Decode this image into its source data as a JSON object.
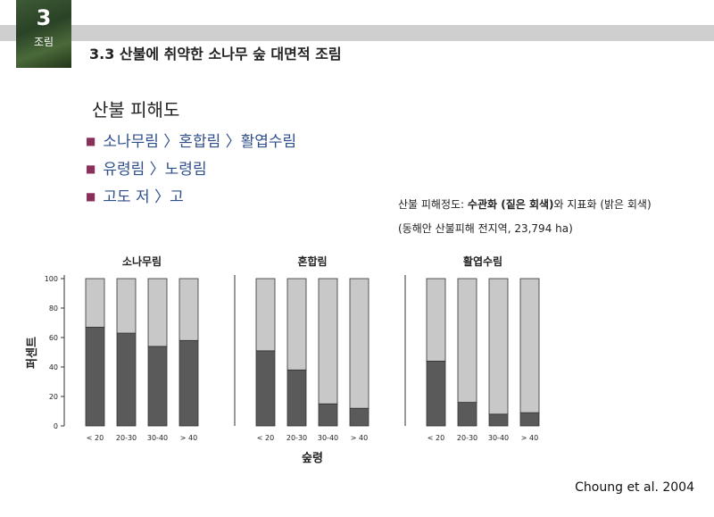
{
  "chapter": {
    "number": "3",
    "label": "조림"
  },
  "slide_title": "3.3 산불에 취약한 소나무 숲 대면적 조림",
  "section": {
    "heading": "산불 피해도",
    "bullets": [
      "소나무림 〉혼합림 〉활엽수림",
      "유령림 〉노령림",
      "고도 저 〉고"
    ]
  },
  "caption": {
    "line1_prefix": "산불 피해정도: ",
    "line1_bold": "수관화 (짙은 회색)",
    "line1_suffix": "와 지표화 (밝은 회색)",
    "line2": "(동해안 산불피해 전지역, 23,794 ha)"
  },
  "credit": "Choung et al. 2004",
  "colors": {
    "dark_bar": "#5a5a5a",
    "light_bar": "#c8c8c8"
  },
  "chart_data": {
    "type": "bar",
    "stacked": true,
    "ylabel": "퍼센트",
    "xlabel": "숲령",
    "ylim": [
      0,
      100
    ],
    "yticks": [
      0,
      20,
      40,
      60,
      80,
      100
    ],
    "categories": [
      "< 20",
      "20-30",
      "30-40",
      "> 40"
    ],
    "panels": [
      {
        "title": "소나무림",
        "series": [
          {
            "values": [
              67,
              63,
              54,
              58
            ]
          },
          {
            "values": [
              33,
              37,
              46,
              42
            ]
          }
        ]
      },
      {
        "title": "혼합림",
        "series": [
          {
            "values": [
              51,
              38,
              15,
              12
            ]
          },
          {
            "values": [
              49,
              62,
              85,
              88
            ]
          }
        ]
      },
      {
        "title": "활엽수림",
        "series": [
          {
            "values": [
              44,
              16,
              8,
              9
            ]
          },
          {
            "values": [
              56,
              84,
              92,
              91
            ]
          }
        ]
      }
    ]
  }
}
